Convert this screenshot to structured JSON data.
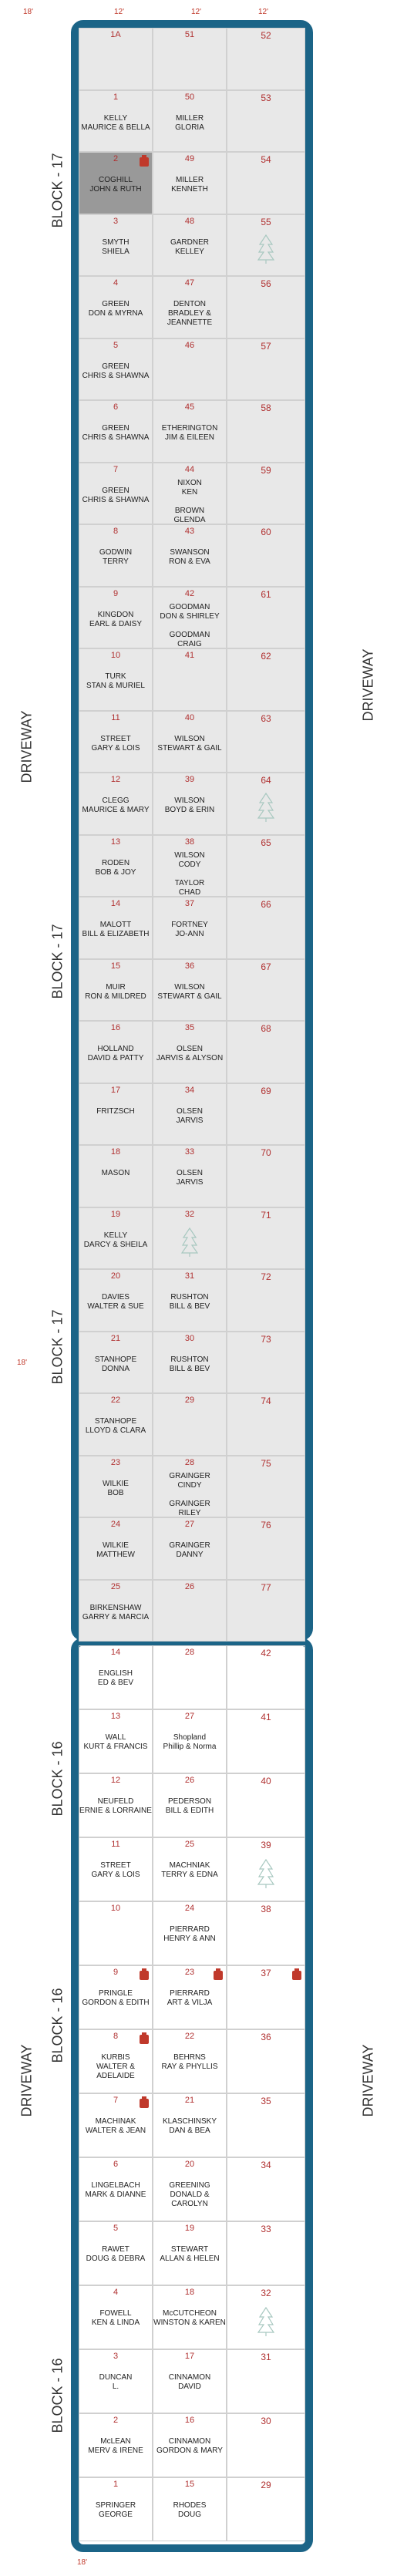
{
  "labels": {
    "driveway": "DRIVEWAY",
    "block17": "BLOCK - 17",
    "block16": "BLOCK - 16",
    "dim_top": "18'",
    "dim_col": "12'",
    "dim_side": "18'",
    "dim_bottom": "18'",
    "dim_row": "18'"
  },
  "colors": {
    "frame": "#1b6487",
    "shaded": "#e8e8e8",
    "number": "#b03030",
    "flag": "#c0392b",
    "tree": "#a8c8c0"
  },
  "block17": {
    "left": [
      {
        "num": "1A",
        "names": []
      },
      {
        "num": "1",
        "names": [
          "KELLY",
          "MAURICE & BELLA"
        ]
      },
      {
        "num": "2",
        "names": [
          "COGHILL",
          "JOHN & RUTH"
        ],
        "dark": true,
        "flag": true
      },
      {
        "num": "3",
        "names": [
          "SMYTH",
          "SHIELA"
        ]
      },
      {
        "num": "4",
        "names": [
          "GREEN",
          "DON & MYRNA"
        ]
      },
      {
        "num": "5",
        "names": [
          "GREEN",
          "CHRIS & SHAWNA"
        ]
      },
      {
        "num": "6",
        "names": [
          "GREEN",
          "CHRIS & SHAWNA"
        ]
      },
      {
        "num": "7",
        "names": [
          "GREEN",
          "CHRIS & SHAWNA"
        ]
      },
      {
        "num": "8",
        "names": [
          "GODWIN",
          "TERRY"
        ]
      },
      {
        "num": "9",
        "names": [
          "KINGDON",
          "EARL & DAISY"
        ]
      },
      {
        "num": "10",
        "names": [
          "TURK",
          "STAN & MURIEL"
        ]
      },
      {
        "num": "11",
        "names": [
          "STREET",
          "GARY & LOIS"
        ]
      },
      {
        "num": "12",
        "names": [
          "CLEGG",
          "MAURICE & MARY"
        ]
      },
      {
        "num": "13",
        "names": [
          "RODEN",
          "BOB & JOY"
        ]
      },
      {
        "num": "14",
        "names": [
          "MALOTT",
          "BILL & ELIZABETH"
        ]
      },
      {
        "num": "15",
        "names": [
          "MUIR",
          "RON & MILDRED"
        ]
      },
      {
        "num": "16",
        "names": [
          "HOLLAND",
          "DAVID & PATTY"
        ]
      },
      {
        "num": "17",
        "names": [
          "FRITZSCH"
        ]
      },
      {
        "num": "18",
        "names": [
          "MASON"
        ]
      },
      {
        "num": "19",
        "names": [
          "KELLY",
          "DARCY & SHEILA"
        ]
      },
      {
        "num": "20",
        "names": [
          "DAVIES",
          "WALTER & SUE"
        ]
      },
      {
        "num": "21",
        "names": [
          "STANHOPE",
          "DONNA"
        ]
      },
      {
        "num": "22",
        "names": [
          "STANHOPE",
          "LLOYD & CLARA"
        ]
      },
      {
        "num": "23",
        "names": [
          "WILKIE",
          "BOB"
        ]
      },
      {
        "num": "24",
        "names": [
          "WILKIE",
          "MATTHEW"
        ]
      },
      {
        "num": "25",
        "names": [
          "BIRKENSHAW",
          "GARRY & MARCIA"
        ]
      }
    ],
    "middle": [
      {
        "num": "51",
        "names": []
      },
      {
        "num": "50",
        "names": [
          "MILLER",
          "GLORIA"
        ]
      },
      {
        "num": "49",
        "names": [
          "MILLER",
          "KENNETH"
        ]
      },
      {
        "num": "48",
        "names": [
          "GARDNER",
          "KELLEY"
        ]
      },
      {
        "num": "47",
        "names": [
          "DENTON",
          "BRADLEY &",
          "JEANNETTE"
        ]
      },
      {
        "num": "46",
        "names": []
      },
      {
        "num": "45",
        "names": [
          "ETHERINGTON",
          "JIM & EILEEN"
        ]
      },
      {
        "num": "44",
        "names": [
          "NIXON",
          "KEN",
          "",
          "BROWN",
          "GLENDA"
        ]
      },
      {
        "num": "43",
        "names": [
          "SWANSON",
          "RON & EVA"
        ]
      },
      {
        "num": "42",
        "names": [
          "GOODMAN",
          "DON & SHIRLEY",
          "",
          "GOODMAN",
          "CRAIG"
        ]
      },
      {
        "num": "41",
        "names": []
      },
      {
        "num": "40",
        "names": [
          "WILSON",
          "STEWART & GAIL"
        ]
      },
      {
        "num": "39",
        "names": [
          "WILSON",
          "BOYD & ERIN"
        ]
      },
      {
        "num": "38",
        "names": [
          "WILSON",
          "CODY",
          "",
          "TAYLOR",
          "CHAD"
        ]
      },
      {
        "num": "37",
        "names": [
          "FORTNEY",
          "JO-ANN"
        ]
      },
      {
        "num": "36",
        "names": [
          "WILSON",
          "STEWART & GAIL"
        ]
      },
      {
        "num": "35",
        "names": [
          "OLSEN",
          "JARVIS & ALYSON"
        ]
      },
      {
        "num": "34",
        "names": [
          "OLSEN",
          "JARVIS"
        ]
      },
      {
        "num": "33",
        "names": [
          "OLSEN",
          "JARVIS"
        ]
      },
      {
        "num": "32",
        "names": [],
        "tree": true
      },
      {
        "num": "31",
        "names": [
          "RUSHTON",
          "BILL & BEV"
        ]
      },
      {
        "num": "30",
        "names": [
          "RUSHTON",
          "BILL & BEV"
        ]
      },
      {
        "num": "29",
        "names": []
      },
      {
        "num": "28",
        "names": [
          "GRAINGER",
          "CINDY",
          "",
          "GRAINGER",
          "RILEY"
        ]
      },
      {
        "num": "27",
        "names": [
          "GRAINGER",
          "DANNY"
        ]
      },
      {
        "num": "26",
        "names": []
      }
    ],
    "right": [
      {
        "num": "52"
      },
      {
        "num": "53"
      },
      {
        "num": "54"
      },
      {
        "num": "55",
        "tree": true
      },
      {
        "num": "56"
      },
      {
        "num": "57"
      },
      {
        "num": "58"
      },
      {
        "num": "59"
      },
      {
        "num": "60"
      },
      {
        "num": "61"
      },
      {
        "num": "62"
      },
      {
        "num": "63"
      },
      {
        "num": "64",
        "tree": true
      },
      {
        "num": "65"
      },
      {
        "num": "66"
      },
      {
        "num": "67"
      },
      {
        "num": "68"
      },
      {
        "num": "69"
      },
      {
        "num": "70"
      },
      {
        "num": "71"
      },
      {
        "num": "72"
      },
      {
        "num": "73"
      },
      {
        "num": "74"
      },
      {
        "num": "75"
      },
      {
        "num": "76"
      },
      {
        "num": "77"
      }
    ]
  },
  "block16": {
    "left": [
      {
        "num": "14",
        "names": [
          "ENGLISH",
          "ED & BEV"
        ]
      },
      {
        "num": "13",
        "names": [
          "WALL",
          "KURT & FRANCIS"
        ]
      },
      {
        "num": "12",
        "names": [
          "NEUFELD",
          "ERNIE & LORRAINE"
        ]
      },
      {
        "num": "11",
        "names": [
          "STREET",
          "GARY & LOIS"
        ]
      },
      {
        "num": "10",
        "names": []
      },
      {
        "num": "9",
        "names": [
          "PRINGLE",
          "GORDON & EDITH"
        ],
        "flag": true
      },
      {
        "num": "8",
        "names": [
          "KURBIS",
          "WALTER &",
          "ADELAIDE"
        ],
        "flag": true
      },
      {
        "num": "7",
        "names": [
          "MACHINAK",
          "WALTER & JEAN"
        ],
        "flag": true
      },
      {
        "num": "6",
        "names": [
          "LINGELBACH",
          "MARK & DIANNE"
        ]
      },
      {
        "num": "5",
        "names": [
          "RAWET",
          "DOUG & DEBRA"
        ]
      },
      {
        "num": "4",
        "names": [
          "FOWELL",
          "KEN & LINDA"
        ]
      },
      {
        "num": "3",
        "names": [
          "DUNCAN",
          "L."
        ]
      },
      {
        "num": "2",
        "names": [
          "McLEAN",
          "MERV & IRENE"
        ]
      },
      {
        "num": "1",
        "names": [
          "SPRINGER",
          "GEORGE"
        ]
      }
    ],
    "middle": [
      {
        "num": "28",
        "names": []
      },
      {
        "num": "27",
        "names": [
          "Shopland",
          "Phillip & Norma"
        ]
      },
      {
        "num": "26",
        "names": [
          "PEDERSON",
          "BILL & EDITH"
        ]
      },
      {
        "num": "25",
        "names": [
          "MACHNIAK",
          "TERRY & EDNA"
        ]
      },
      {
        "num": "24",
        "names": [
          "PIERRARD",
          "HENRY & ANN"
        ]
      },
      {
        "num": "23",
        "names": [
          "PIERRARD",
          "ART & VILJA"
        ],
        "flag": true
      },
      {
        "num": "22",
        "names": [
          "BEHRNS",
          "RAY & PHYLLIS"
        ]
      },
      {
        "num": "21",
        "names": [
          "KLASCHINSKY",
          "DAN & BEA"
        ]
      },
      {
        "num": "20",
        "names": [
          "GREENING",
          "DONALD &",
          "CAROLYN"
        ]
      },
      {
        "num": "19",
        "names": [
          "STEWART",
          "ALLAN & HELEN"
        ]
      },
      {
        "num": "18",
        "names": [
          "McCUTCHEON",
          "WINSTON & KAREN"
        ]
      },
      {
        "num": "17",
        "names": [
          "CINNAMON",
          "DAVID"
        ]
      },
      {
        "num": "16",
        "names": [
          "CINNAMON",
          "GORDON & MARY"
        ]
      },
      {
        "num": "15",
        "names": [
          "RHODES",
          "DOUG"
        ]
      }
    ],
    "right": [
      {
        "num": "42"
      },
      {
        "num": "41"
      },
      {
        "num": "40"
      },
      {
        "num": "39",
        "tree": true
      },
      {
        "num": "38"
      },
      {
        "num": "37",
        "flag": true
      },
      {
        "num": "36"
      },
      {
        "num": "35"
      },
      {
        "num": "34"
      },
      {
        "num": "33"
      },
      {
        "num": "32",
        "tree": true
      },
      {
        "num": "31"
      },
      {
        "num": "30"
      },
      {
        "num": "29"
      }
    ]
  }
}
